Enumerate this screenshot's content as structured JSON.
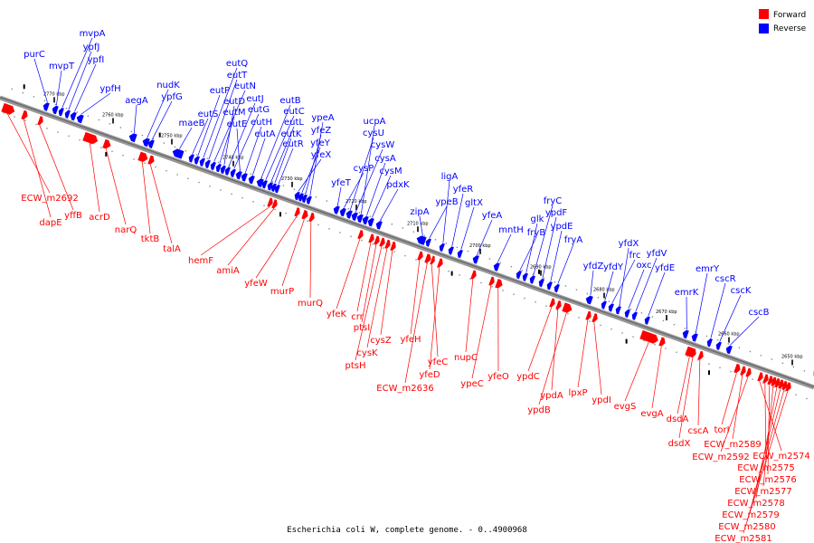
{
  "legend": {
    "forward": {
      "label": "Forward",
      "color": "#ff0000"
    },
    "reverse": {
      "label": "Reverse",
      "color": "#0000ff"
    }
  },
  "caption": "Escherichia coli W, complete genome. - 0..4900968",
  "ticks": [
    "2770 kbp",
    "2760 kbp",
    "2750 kbp",
    "2740 kbp",
    "2730 kbp",
    "2720 kbp",
    "2710 kbp",
    "2700 kbp",
    "2690 kbp",
    "2680 kbp",
    "2670 kbp",
    "2660 kbp",
    "2650 kbp"
  ],
  "reverse_genes": [
    "purC",
    "mvpT",
    "mvpA",
    "ypfJ",
    "ypfI",
    "ypfH",
    "aegA",
    "nudK",
    "ypfG",
    "maeB",
    "eutS",
    "eutP",
    "eutQ",
    "eutT",
    "eutN",
    "eutM",
    "eutD",
    "eutJ",
    "eutG",
    "eutE",
    "eutH",
    "eutA",
    "eutB",
    "eutC",
    "eutL",
    "eutK",
    "eutR",
    "yfeX",
    "yfeY",
    "yfeZ",
    "ypeA",
    "yfeT",
    "cysP",
    "cysU",
    "cysW",
    "ucpA",
    "cysA",
    "cysM",
    "pdxK",
    "zipA",
    "ypeB",
    "ligA",
    "yfeR",
    "gltX",
    "yfeA",
    "mntH",
    "fryB",
    "glk",
    "fryC",
    "ypdF",
    "ypdE",
    "fryA",
    "yfdZ",
    "yfdY",
    "frc",
    "yfdX",
    "oxc",
    "yfdV",
    "yfdE",
    "emrK",
    "emrY",
    "cscR",
    "cscK",
    "cscB"
  ],
  "forward_genes": [
    "ECW_m2692",
    "dapE",
    "yffB",
    "acrD",
    "narQ",
    "tktB",
    "talA",
    "hemF",
    "amiA",
    "yfeW",
    "murP",
    "murQ",
    "yfeK",
    "crr",
    "ptsI",
    "ptsH",
    "cysK",
    "cysZ",
    "yfeH",
    "ECW_m2636",
    "yfeC",
    "yfeD",
    "nupC",
    "ypeC",
    "yfeO",
    "ypdC",
    "ypdA",
    "ypdB",
    "lpxP",
    "ypdI",
    "evgS",
    "evgA",
    "dsdA",
    "dsdX",
    "cscA",
    "torI",
    "ECW_m2589",
    "ECW_m2592",
    "ECW_m2574",
    "ECW_m2575",
    "ECW_m2576",
    "ECW_m2577",
    "ECW_m2578",
    "ECW_m2579",
    "ECW_m2580",
    "ECW_m2581"
  ]
}
